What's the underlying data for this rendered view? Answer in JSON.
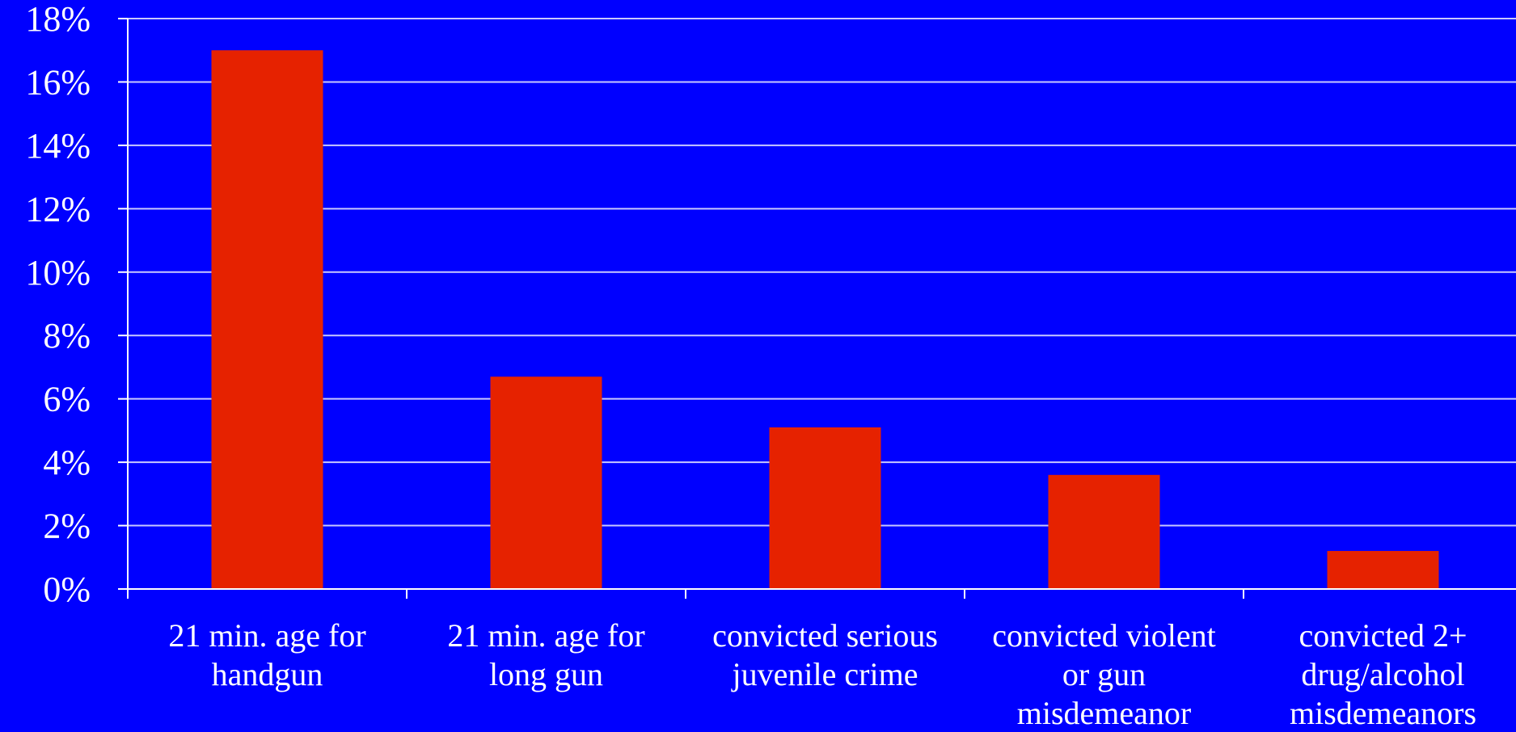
{
  "chart_data": {
    "type": "bar",
    "categories": [
      [
        "21 min. age for",
        "handgun"
      ],
      [
        "21 min. age for",
        "long gun"
      ],
      [
        "convicted serious",
        "juvenile crime"
      ],
      [
        "convicted violent",
        "or gun",
        "misdemeanor"
      ],
      [
        "convicted 2+",
        "drug/alcohol",
        "misdemeanors"
      ]
    ],
    "values": [
      17.0,
      6.7,
      5.1,
      3.6,
      1.2
    ],
    "ylim": [
      0,
      18
    ],
    "ytick_step": 2,
    "ytick_suffix": "%",
    "grid": true,
    "colors": {
      "background": "#0000FF",
      "bar": "#E62200",
      "grid": "#C8C8FF",
      "axis": "#FFFFFF",
      "text": "#FFFFFF"
    }
  }
}
